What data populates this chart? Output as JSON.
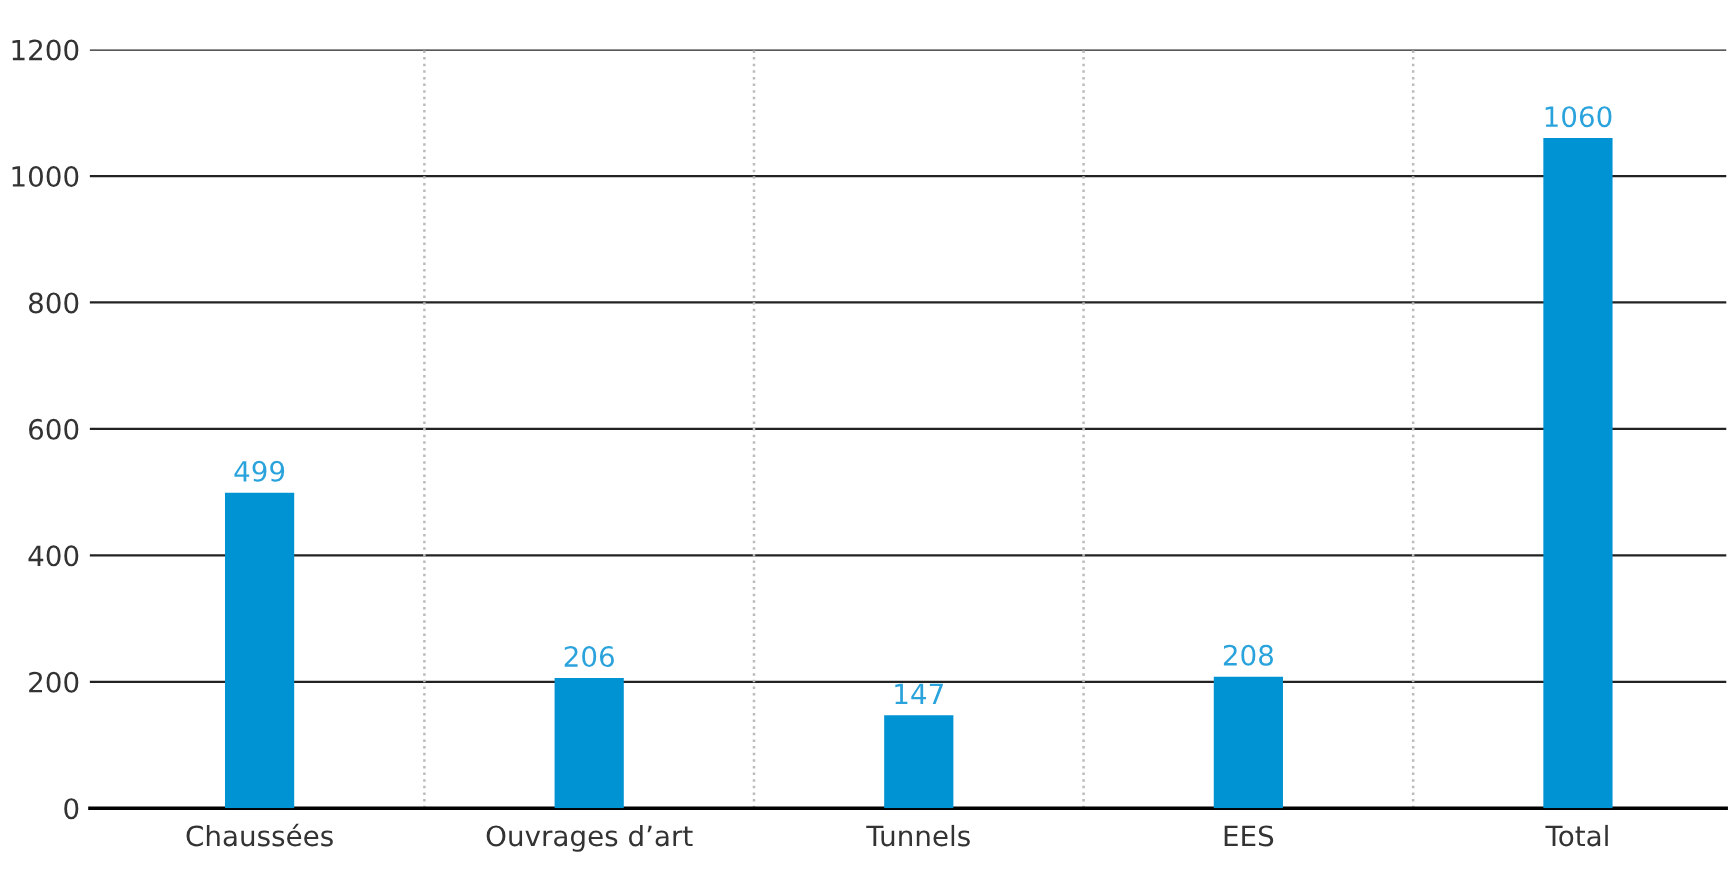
{
  "chart_data": {
    "type": "bar",
    "categories": [
      "Chaussées",
      "Ouvrages d’art",
      "Tunnels",
      "EES",
      "Total"
    ],
    "values": [
      499,
      206,
      147,
      208,
      1060
    ],
    "color": "#0093d3",
    "ylim": [
      0,
      1200
    ],
    "yticks": [
      0,
      200,
      400,
      600,
      800,
      1000,
      1200
    ],
    "grid": "y",
    "data_labels": true
  }
}
